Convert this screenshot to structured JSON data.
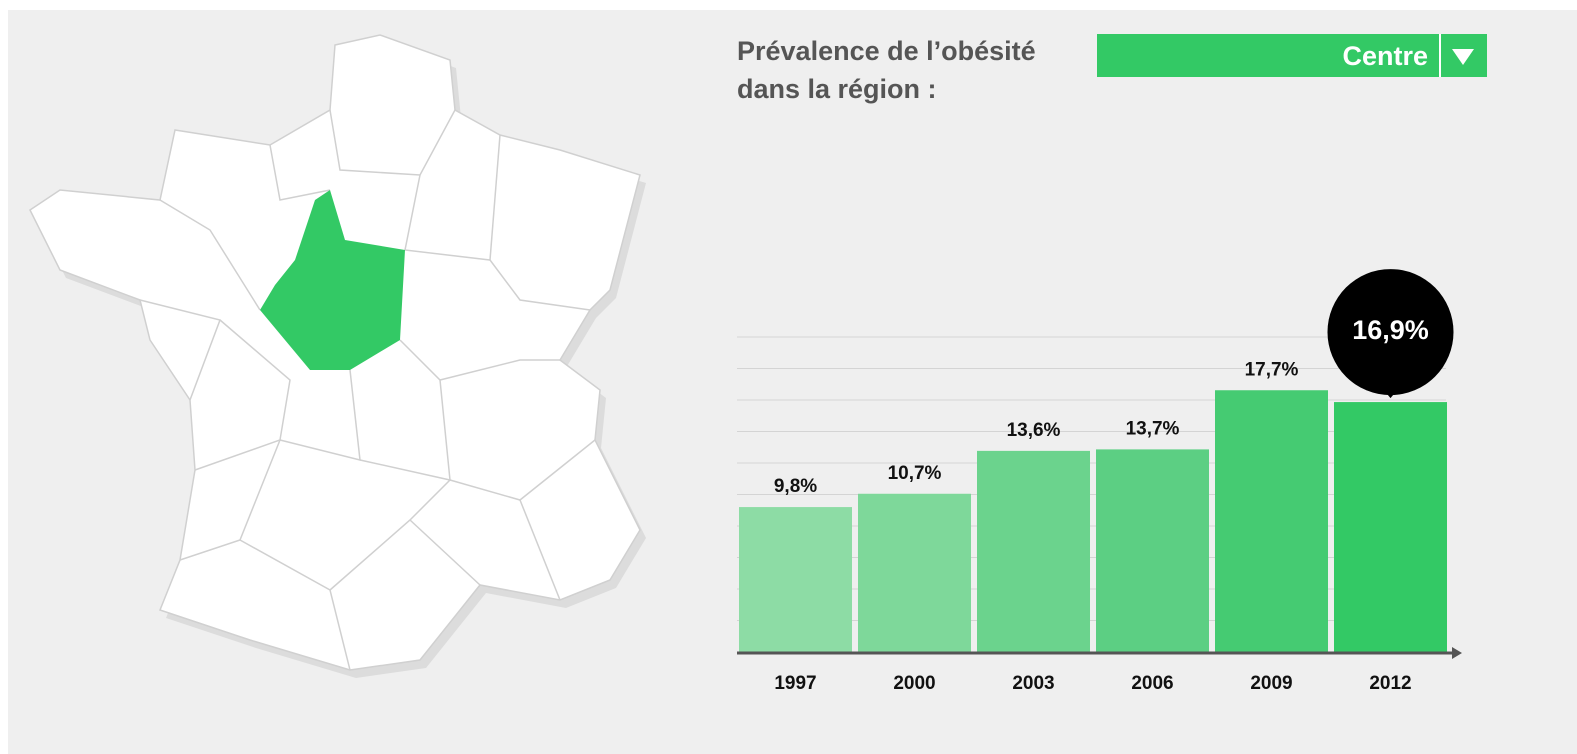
{
  "chart_data": {
    "type": "bar",
    "title": [
      "Prévalence de l’obésité",
      "dans la région :"
    ],
    "selector": "Centre",
    "categories": [
      "1997",
      "2000",
      "2003",
      "2006",
      "2009",
      "2012"
    ],
    "values": [
      9.8,
      10.7,
      13.6,
      13.7,
      17.7,
      16.9
    ],
    "value_labels": [
      "9,8%",
      "10,7%",
      "13,6%",
      "13,7%",
      "17,7%",
      "16,9%"
    ],
    "colors": [
      "#8ddca5",
      "#7ed89a",
      "#6bd38d",
      "#5ccf83",
      "#45cb72",
      "#33c965"
    ],
    "ylim": [
      0,
      21.3
    ],
    "yticks": [
      0,
      2.13,
      4.26,
      6.39,
      8.52,
      10.65,
      12.78,
      14.91,
      17.04,
      19.17,
      21.3
    ],
    "grid": true
  }
}
